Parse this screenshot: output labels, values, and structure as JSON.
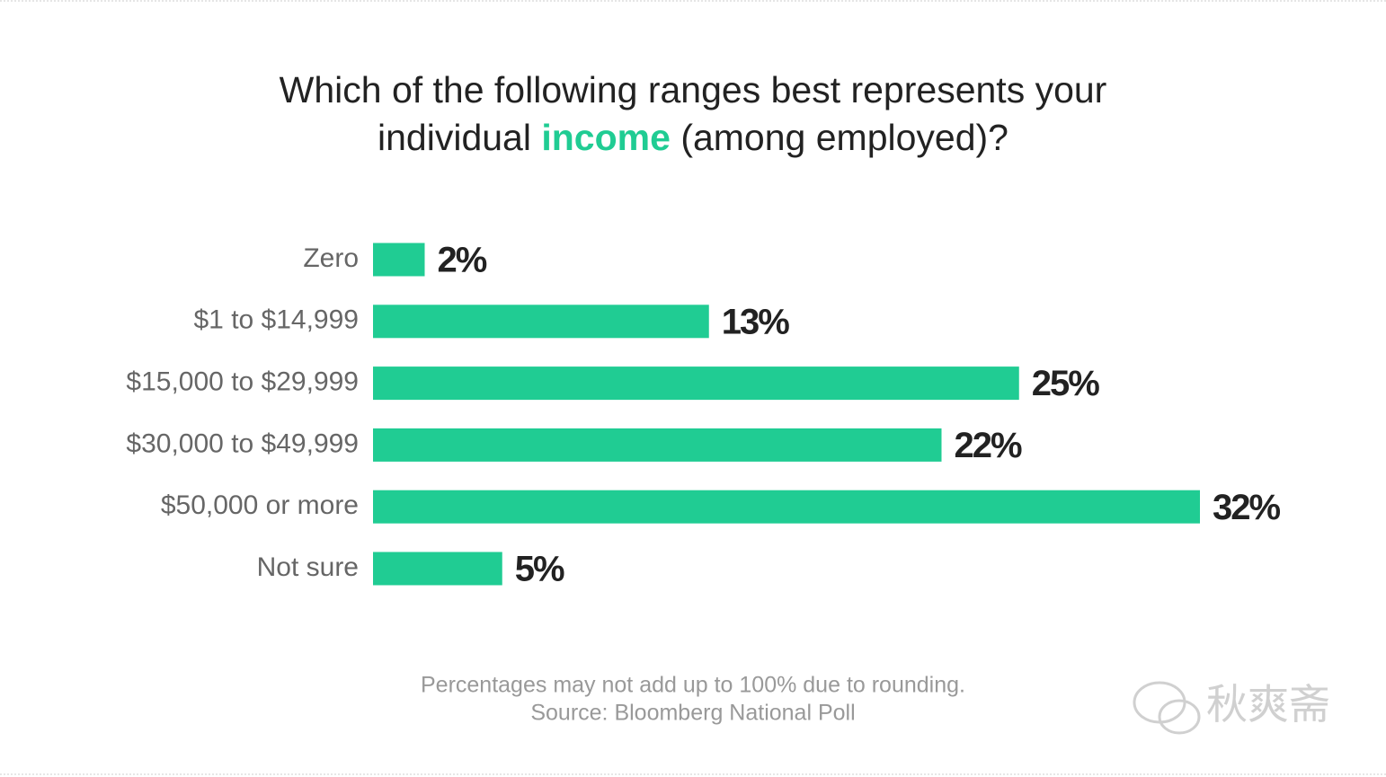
{
  "chart_data": {
    "type": "bar",
    "title": {
      "line1": "Which of the following ranges best represents your",
      "line2_start": "individual",
      "highlight": "income",
      "line2_end": "(among employed)?"
    },
    "categories": [
      "Zero",
      "$1 to $14,999",
      "$15,000 to $29,999",
      "$30,000 to $49,999",
      "$50,000 or more",
      "Not sure"
    ],
    "values": [
      2,
      13,
      25,
      22,
      32,
      5
    ],
    "value_labels": [
      "2%",
      "13%",
      "25%",
      "22%",
      "32%",
      "5%"
    ],
    "color": "#20cc93",
    "notes": [
      "Percentages may not add up to 100% due to rounding.",
      "Source: Bloomberg National Poll"
    ],
    "watermark": "秋爽斋"
  }
}
